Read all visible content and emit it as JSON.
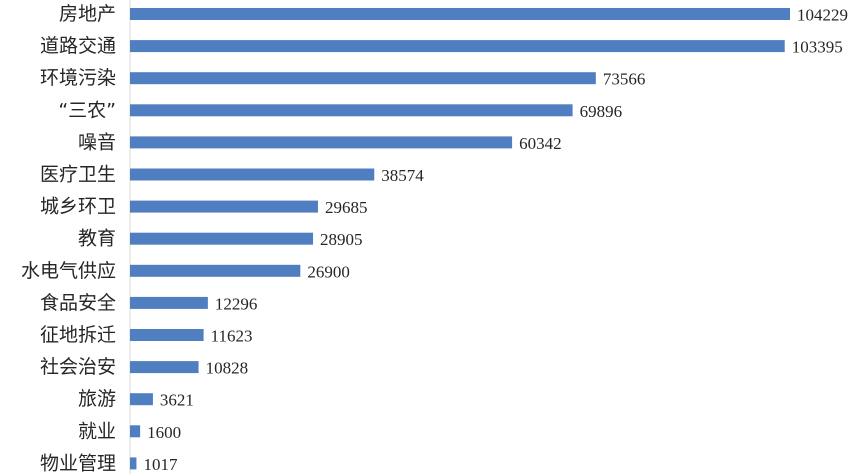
{
  "chart_data": {
    "type": "bar",
    "orientation": "horizontal",
    "title": "",
    "xlabel": "",
    "ylabel": "",
    "categories": [
      "房地产",
      "道路交通",
      "环境污染",
      "“三农”",
      "噪音",
      "医疗卫生",
      "城乡环卫",
      "教育",
      "水电气供应",
      "食品安全",
      "征地拆迁",
      "社会治安",
      "旅游",
      "就业",
      "物业管理"
    ],
    "values": [
      104229,
      103395,
      73566,
      69896,
      60342,
      38574,
      29685,
      28905,
      26900,
      12296,
      11623,
      10828,
      3621,
      1600,
      1017
    ],
    "value_labels": [
      "104229",
      "103395",
      "73566",
      "69896",
      "60342",
      "38574",
      "29685",
      "28905",
      "26900",
      "12296",
      "11623",
      "10828",
      "3621",
      "1600",
      "1017"
    ],
    "xlim": [
      0,
      104229
    ],
    "grid": false,
    "legend": "none",
    "bar_color": "#4f7fc0"
  }
}
